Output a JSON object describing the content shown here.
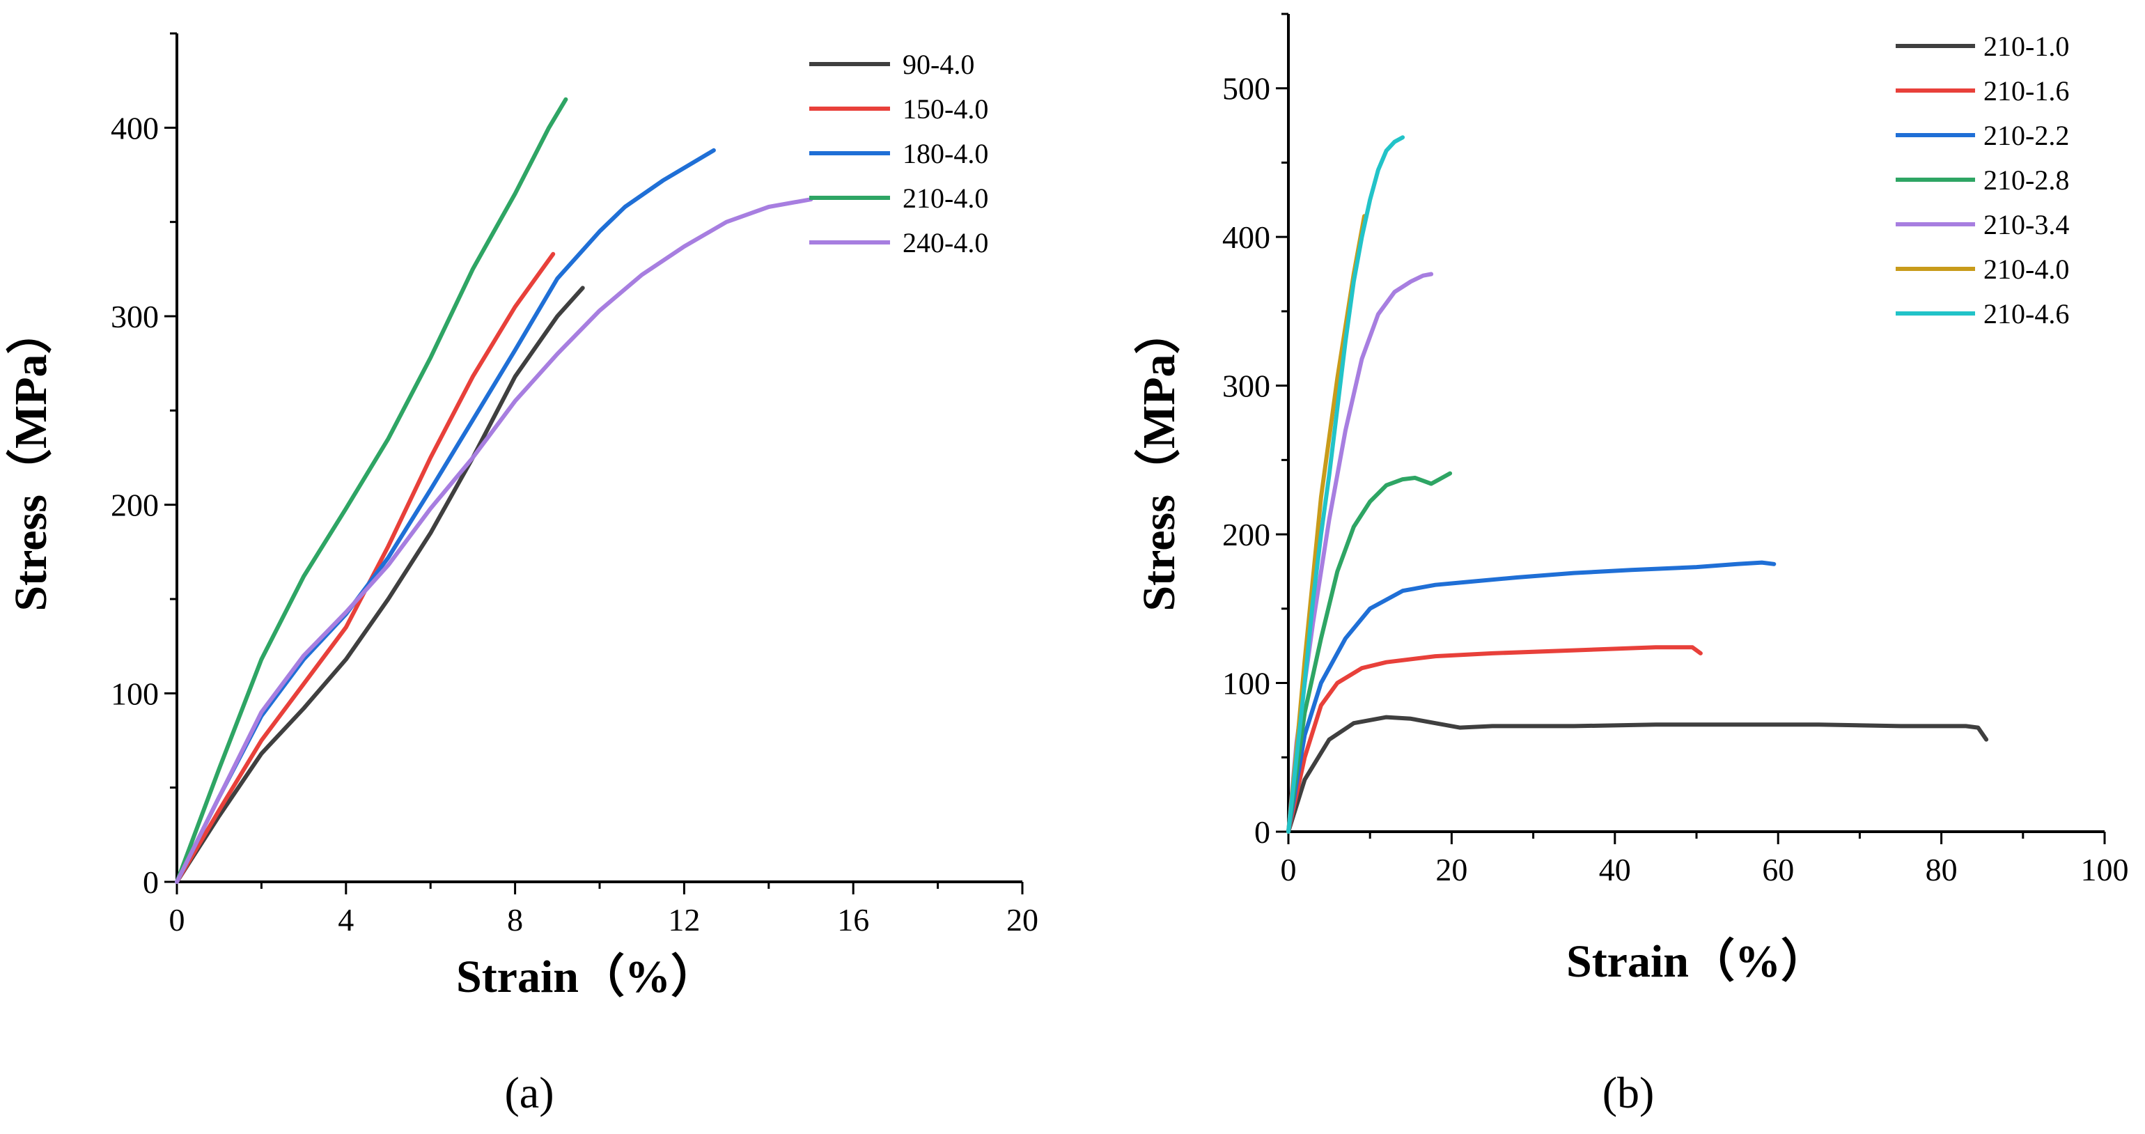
{
  "chart_data": [
    {
      "type": "line",
      "panel_label": "(a)",
      "title": "",
      "xlabel": "Strain（%）",
      "ylabel": "Stress（MPa）",
      "xlim": [
        0,
        20
      ],
      "ylim": [
        0,
        450
      ],
      "xticks": [
        0,
        4,
        8,
        12,
        16,
        20
      ],
      "yticks": [
        0,
        100,
        200,
        300,
        400
      ],
      "legend_position": "top-right",
      "series": [
        {
          "name": "90-4.0",
          "color": "#3f3f3f",
          "points": [
            [
              0,
              0
            ],
            [
              1,
              35
            ],
            [
              2,
              68
            ],
            [
              3,
              92
            ],
            [
              4,
              118
            ],
            [
              5,
              150
            ],
            [
              6,
              185
            ],
            [
              7,
              225
            ],
            [
              8,
              268
            ],
            [
              9,
              300
            ],
            [
              9.6,
              315
            ]
          ]
        },
        {
          "name": "150-4.0",
          "color": "#e8403a",
          "points": [
            [
              0,
              0
            ],
            [
              1,
              38
            ],
            [
              2,
              75
            ],
            [
              3,
              105
            ],
            [
              4,
              135
            ],
            [
              5,
              178
            ],
            [
              6,
              225
            ],
            [
              7,
              268
            ],
            [
              8,
              305
            ],
            [
              8.9,
              333
            ]
          ]
        },
        {
          "name": "180-4.0",
          "color": "#1f6fd6",
          "points": [
            [
              0,
              0
            ],
            [
              1,
              45
            ],
            [
              2,
              88
            ],
            [
              3,
              118
            ],
            [
              4,
              142
            ],
            [
              5,
              172
            ],
            [
              6,
              208
            ],
            [
              7,
              245
            ],
            [
              8,
              282
            ],
            [
              9,
              320
            ],
            [
              10,
              345
            ],
            [
              10.6,
              358
            ],
            [
              11.5,
              372
            ],
            [
              12.7,
              388
            ]
          ]
        },
        {
          "name": "210-4.0",
          "color": "#2ea564",
          "points": [
            [
              0,
              0
            ],
            [
              1,
              60
            ],
            [
              2,
              118
            ],
            [
              3,
              162
            ],
            [
              4,
              198
            ],
            [
              5,
              235
            ],
            [
              6,
              278
            ],
            [
              7,
              325
            ],
            [
              8,
              365
            ],
            [
              8.8,
              400
            ],
            [
              9.2,
              415
            ]
          ]
        },
        {
          "name": "240-4.0",
          "color": "#a77ee0",
          "points": [
            [
              0,
              0
            ],
            [
              1,
              45
            ],
            [
              2,
              90
            ],
            [
              3,
              120
            ],
            [
              4,
              143
            ],
            [
              5,
              168
            ],
            [
              6,
              198
            ],
            [
              7,
              225
            ],
            [
              8,
              255
            ],
            [
              9,
              280
            ],
            [
              10,
              303
            ],
            [
              11,
              322
            ],
            [
              12,
              337
            ],
            [
              13,
              350
            ],
            [
              14,
              358
            ],
            [
              15,
              362
            ]
          ]
        }
      ]
    },
    {
      "type": "line",
      "panel_label": "(b)",
      "title": "",
      "xlabel": "Strain（%）",
      "ylabel": "Stress（MPa）",
      "xlim": [
        0,
        100
      ],
      "ylim": [
        0,
        550
      ],
      "xticks": [
        0,
        20,
        40,
        60,
        80,
        100
      ],
      "yticks": [
        0,
        100,
        200,
        300,
        400,
        500
      ],
      "legend_position": "top-right",
      "series": [
        {
          "name": "210-1.0",
          "color": "#3f3f3f",
          "points": [
            [
              0,
              0
            ],
            [
              2,
              35
            ],
            [
              5,
              62
            ],
            [
              8,
              73
            ],
            [
              12,
              77
            ],
            [
              15,
              76
            ],
            [
              18,
              73
            ],
            [
              21,
              70
            ],
            [
              25,
              71
            ],
            [
              35,
              71
            ],
            [
              45,
              72
            ],
            [
              55,
              72
            ],
            [
              65,
              72
            ],
            [
              75,
              71
            ],
            [
              83,
              71
            ],
            [
              84.5,
              70
            ],
            [
              85.5,
              62
            ]
          ]
        },
        {
          "name": "210-1.6",
          "color": "#e8403a",
          "points": [
            [
              0,
              0
            ],
            [
              2,
              50
            ],
            [
              4,
              85
            ],
            [
              6,
              100
            ],
            [
              9,
              110
            ],
            [
              12,
              114
            ],
            [
              18,
              118
            ],
            [
              25,
              120
            ],
            [
              35,
              122
            ],
            [
              45,
              124
            ],
            [
              49.5,
              124
            ],
            [
              50.5,
              120
            ]
          ]
        },
        {
          "name": "210-2.2",
          "color": "#1f6fd6",
          "points": [
            [
              0,
              0
            ],
            [
              2,
              65
            ],
            [
              4,
              100
            ],
            [
              7,
              130
            ],
            [
              10,
              150
            ],
            [
              14,
              162
            ],
            [
              18,
              166
            ],
            [
              22,
              168
            ],
            [
              28,
              171
            ],
            [
              35,
              174
            ],
            [
              42,
              176
            ],
            [
              50,
              178
            ],
            [
              55,
              180
            ],
            [
              58,
              181
            ],
            [
              59.5,
              180
            ]
          ]
        },
        {
          "name": "210-2.8",
          "color": "#2ea564",
          "points": [
            [
              0,
              0
            ],
            [
              2,
              80
            ],
            [
              4,
              130
            ],
            [
              6,
              175
            ],
            [
              8,
              205
            ],
            [
              10,
              222
            ],
            [
              12,
              233
            ],
            [
              14,
              237
            ],
            [
              15.5,
              238
            ],
            [
              16.5,
              236
            ],
            [
              17.5,
              234
            ],
            [
              18.5,
              237
            ],
            [
              19.8,
              241
            ]
          ]
        },
        {
          "name": "210-3.4",
          "color": "#a77ee0",
          "points": [
            [
              0,
              0
            ],
            [
              1,
              60
            ],
            [
              3,
              140
            ],
            [
              5,
              210
            ],
            [
              7,
              270
            ],
            [
              9,
              318
            ],
            [
              11,
              348
            ],
            [
              13,
              363
            ],
            [
              15,
              370
            ],
            [
              16.5,
              374
            ],
            [
              17.5,
              375
            ]
          ]
        },
        {
          "name": "210-4.0",
          "color": "#c89b1a",
          "points": [
            [
              0,
              0
            ],
            [
              1,
              55
            ],
            [
              2,
              115
            ],
            [
              3,
              170
            ],
            [
              4,
              225
            ],
            [
              5,
              265
            ],
            [
              6,
              305
            ],
            [
              7,
              340
            ],
            [
              8,
              375
            ],
            [
              9,
              405
            ],
            [
              9.3,
              414
            ]
          ]
        },
        {
          "name": "210-4.6",
          "color": "#22c3c8",
          "points": [
            [
              0,
              0
            ],
            [
              1,
              50
            ],
            [
              2,
              100
            ],
            [
              3,
              155
            ],
            [
              4,
              200
            ],
            [
              5,
              240
            ],
            [
              6,
              285
            ],
            [
              7,
              330
            ],
            [
              8,
              370
            ],
            [
              9,
              400
            ],
            [
              10,
              425
            ],
            [
              11,
              445
            ],
            [
              12,
              458
            ],
            [
              13,
              464
            ],
            [
              14,
              467
            ]
          ]
        }
      ]
    }
  ]
}
